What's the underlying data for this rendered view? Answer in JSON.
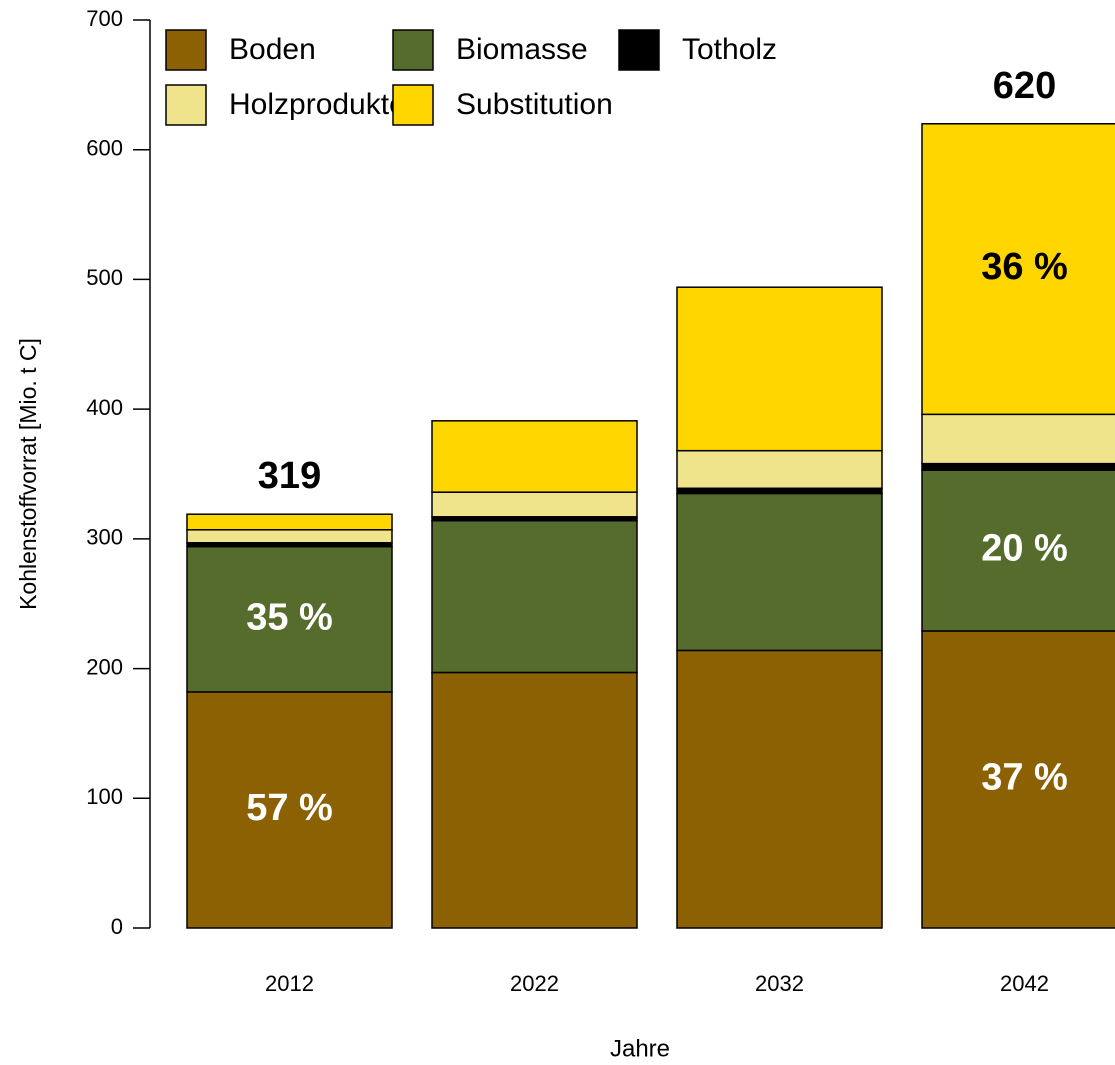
{
  "chart_data": {
    "type": "stacked_bar",
    "x_label": "Jahre",
    "y_label": "Kohlenstoffvorrat [Mio. t C]",
    "categories": [
      "2012",
      "2022",
      "2032",
      "2042"
    ],
    "series": [
      {
        "name": "Boden",
        "color": "#8b6104",
        "values": [
          182,
          197,
          214,
          229
        ]
      },
      {
        "name": "Biomasse",
        "color": "#566c2d",
        "values": [
          112,
          117,
          121,
          124
        ]
      },
      {
        "name": "Totholz",
        "color": "#000000",
        "values": [
          3,
          3,
          4,
          5
        ]
      },
      {
        "name": "Holzprodukte",
        "color": "#efe48c",
        "values": [
          10,
          19,
          29,
          38
        ]
      },
      {
        "name": "Substitution",
        "color": "#ffd600",
        "values": [
          12,
          55,
          126,
          224
        ]
      }
    ],
    "total_labels": [
      319,
      null,
      null,
      620
    ],
    "annotations": [
      {
        "category": "2012",
        "series": "Boden",
        "text": "57 %",
        "color": "#ffffff"
      },
      {
        "category": "2012",
        "series": "Biomasse",
        "text": "35 %",
        "color": "#ffffff"
      },
      {
        "category": "2042",
        "series": "Boden",
        "text": "37 %",
        "color": "#ffffff"
      },
      {
        "category": "2042",
        "series": "Biomasse",
        "text": "20 %",
        "color": "#ffffff"
      },
      {
        "category": "2042",
        "series": "Substitution",
        "text": "36 %",
        "color": "#000000"
      }
    ],
    "ylim": [
      0,
      700
    ],
    "yticks": [
      0,
      100,
      200,
      300,
      400,
      500,
      600,
      700
    ],
    "legend": "top-left"
  }
}
